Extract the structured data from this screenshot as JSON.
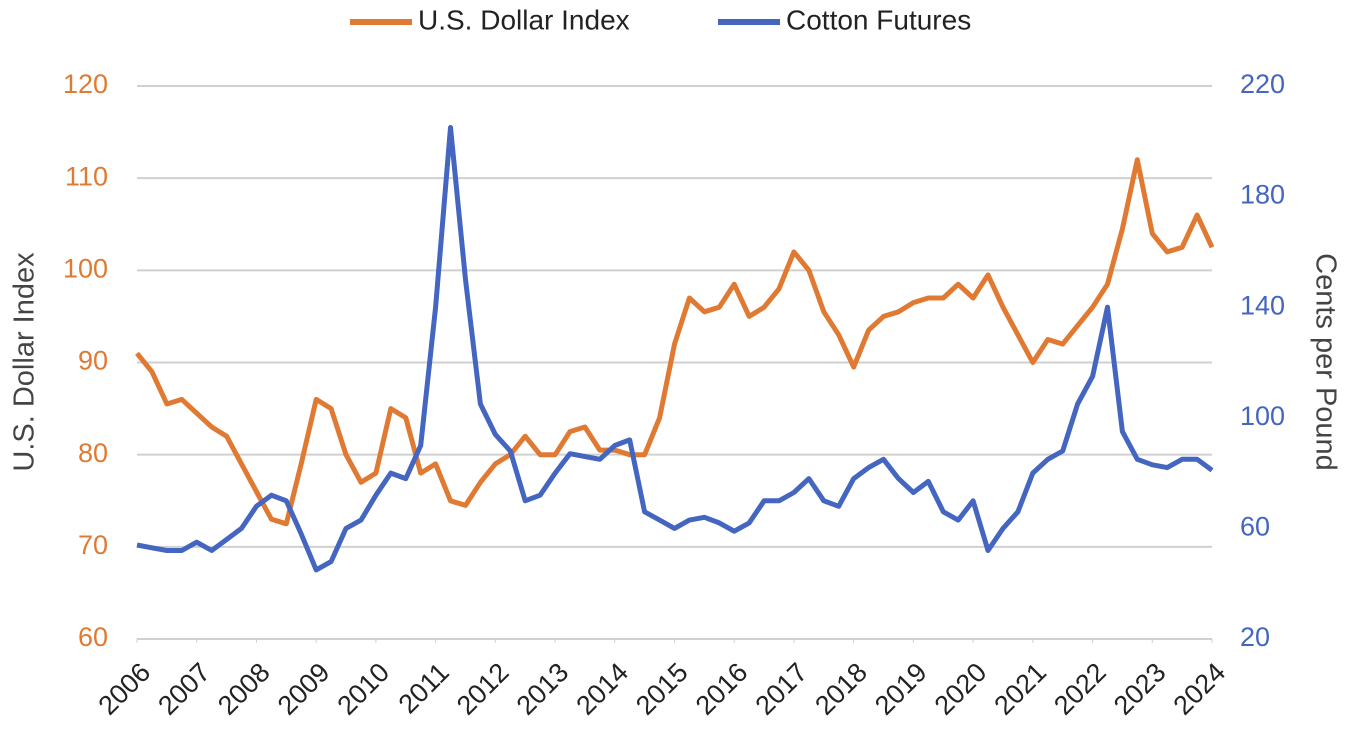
{
  "chart_data": {
    "type": "line",
    "x": [
      2006,
      2006.25,
      2006.5,
      2006.75,
      2007,
      2007.25,
      2007.5,
      2007.75,
      2008,
      2008.25,
      2008.5,
      2008.75,
      2009,
      2009.25,
      2009.5,
      2009.75,
      2010,
      2010.25,
      2010.5,
      2010.75,
      2011,
      2011.25,
      2011.5,
      2011.75,
      2012,
      2012.25,
      2012.5,
      2012.75,
      2013,
      2013.25,
      2013.5,
      2013.75,
      2014,
      2014.25,
      2014.5,
      2014.75,
      2015,
      2015.25,
      2015.5,
      2015.75,
      2016,
      2016.25,
      2016.5,
      2016.75,
      2017,
      2017.25,
      2017.5,
      2017.75,
      2018,
      2018.25,
      2018.5,
      2018.75,
      2019,
      2019.25,
      2019.5,
      2019.75,
      2020,
      2020.25,
      2020.5,
      2020.75,
      2021,
      2021.25,
      2021.5,
      2021.75,
      2022,
      2022.25,
      2022.5,
      2022.75,
      2023,
      2023.25,
      2023.5,
      2023.75,
      2024
    ],
    "series": [
      {
        "name": "U.S. Dollar Index",
        "color": "#e07a33",
        "values": [
          91,
          89,
          85.5,
          86,
          84.5,
          83,
          82,
          79,
          76,
          73,
          72.5,
          79,
          86,
          85,
          80,
          77,
          78,
          85,
          84,
          78,
          79,
          75,
          74.5,
          77,
          79,
          80,
          82,
          80,
          80,
          82.5,
          83,
          80.5,
          80.5,
          80,
          80,
          84,
          92,
          97,
          95.5,
          96,
          98.5,
          95,
          96,
          98,
          102,
          100,
          95.5,
          93,
          89.5,
          93.5,
          95,
          95.5,
          96.5,
          97,
          97,
          98.5,
          97,
          99.5,
          96,
          93,
          90,
          92.5,
          92,
          94,
          96,
          98.5,
          104.5,
          112,
          104,
          102,
          102.5,
          106,
          102.5
        ]
      },
      {
        "name": "Cotton Futures",
        "color": "#4466c0",
        "axis": "y2",
        "values": [
          54,
          53,
          52,
          52,
          55,
          52,
          56,
          60,
          68,
          72,
          70,
          58,
          45,
          48,
          60,
          63,
          72,
          80,
          78,
          90,
          140,
          205,
          150,
          105,
          94,
          88,
          70,
          72,
          80,
          87,
          86,
          85,
          90,
          92,
          66,
          63,
          60,
          63,
          64,
          62,
          59,
          62,
          70,
          70,
          73,
          78,
          70,
          68,
          78,
          82,
          85,
          78,
          73,
          77,
          66,
          63,
          70,
          52,
          60,
          66,
          80,
          85,
          88,
          105,
          115,
          140,
          95,
          85,
          83,
          82,
          85,
          85,
          81
        ]
      }
    ],
    "xlim": [
      2006,
      2024
    ],
    "xticks": [
      2006,
      2007,
      2008,
      2009,
      2010,
      2011,
      2012,
      2013,
      2014,
      2015,
      2016,
      2017,
      2018,
      2019,
      2020,
      2021,
      2022,
      2023,
      2024
    ],
    "ylim": [
      60,
      120
    ],
    "yticks": [
      60,
      70,
      80,
      90,
      100,
      110,
      120
    ],
    "y2lim": [
      20,
      220
    ],
    "y2ticks": [
      20,
      60,
      100,
      140,
      180,
      220
    ],
    "ylabel": "U.S. Dollar Index",
    "y2label": "Cents per Pound",
    "grid": true,
    "legend": "top"
  }
}
